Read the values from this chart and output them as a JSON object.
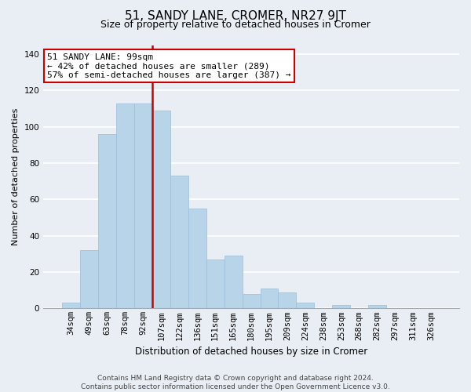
{
  "title": "51, SANDY LANE, CROMER, NR27 9JT",
  "subtitle": "Size of property relative to detached houses in Cromer",
  "xlabel": "Distribution of detached houses by size in Cromer",
  "ylabel": "Number of detached properties",
  "categories": [
    "34sqm",
    "49sqm",
    "63sqm",
    "78sqm",
    "92sqm",
    "107sqm",
    "122sqm",
    "136sqm",
    "151sqm",
    "165sqm",
    "180sqm",
    "195sqm",
    "209sqm",
    "224sqm",
    "238sqm",
    "253sqm",
    "268sqm",
    "282sqm",
    "297sqm",
    "311sqm",
    "326sqm"
  ],
  "values": [
    3,
    32,
    96,
    113,
    113,
    109,
    73,
    55,
    27,
    29,
    8,
    11,
    9,
    3,
    0,
    2,
    0,
    2,
    0,
    0,
    0
  ],
  "bar_color": "#b8d4e8",
  "bar_edge_color": "#9cbdd8",
  "vline_x": 4.5,
  "vline_color": "#cc0000",
  "annotation_text": "51 SANDY LANE: 99sqm\n← 42% of detached houses are smaller (289)\n57% of semi-detached houses are larger (387) →",
  "annotation_box_facecolor": "white",
  "annotation_box_edgecolor": "#cc0000",
  "ylim": [
    0,
    145
  ],
  "yticks": [
    0,
    20,
    40,
    60,
    80,
    100,
    120,
    140
  ],
  "footer": "Contains HM Land Registry data © Crown copyright and database right 2024.\nContains public sector information licensed under the Open Government Licence v3.0.",
  "figure_bg": "#e8eef4",
  "plot_bg": "#e8eef4",
  "title_fontsize": 11,
  "subtitle_fontsize": 9,
  "xlabel_fontsize": 8.5,
  "ylabel_fontsize": 8,
  "tick_fontsize": 7.5,
  "footer_fontsize": 6.5,
  "annotation_fontsize": 8
}
